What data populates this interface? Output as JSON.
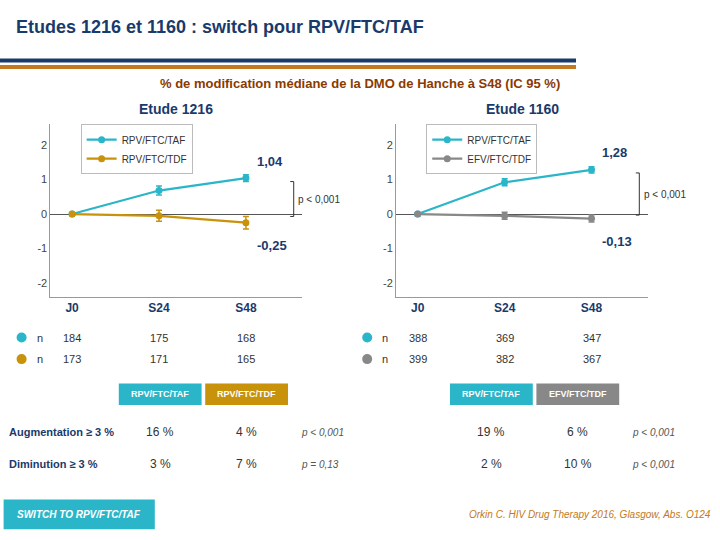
{
  "title": "Etudes 1216 et 1160 : switch pour RPV/FTC/TAF",
  "subtitle": "% de modification médiane de la DMO de Hanche à S48 (IC 95 %)",
  "chart_data": [
    {
      "type": "line",
      "title": "Etude 1216",
      "categories": [
        "J0",
        "S24",
        "S48"
      ],
      "series": [
        {
          "name": "RPV/FTC/TAF",
          "color": "#2bb5c8",
          "values": [
            0.0,
            0.68,
            1.04
          ],
          "errors": [
            0.04,
            0.13,
            0.1
          ],
          "value_labels": [
            null,
            null,
            "1,04"
          ],
          "counts": [
            184,
            175,
            168
          ]
        },
        {
          "name": "RPV/FTC/TDF",
          "color": "#c8920a",
          "values": [
            0.0,
            -0.05,
            -0.25
          ],
          "errors": [
            0.04,
            0.16,
            0.18
          ],
          "value_labels": [
            null,
            null,
            "-0,25"
          ],
          "counts": [
            173,
            171,
            165
          ]
        }
      ],
      "counts_label": "n",
      "annotations": [
        {
          "text": "p < 0,001"
        }
      ],
      "ylim": [
        -2.4,
        2.6
      ],
      "yticks": [
        -2,
        -1,
        0,
        1,
        2
      ],
      "grid": false,
      "legend": "upper left",
      "table": {
        "columns": [
          {
            "name": "RPV/FTC/TAF",
            "color": "#2bb5c8"
          },
          {
            "name": "RPV/FTC/TDF",
            "color": "#c8920a"
          }
        ],
        "rows": [
          {
            "label": "Augmentation ≥ 3 %",
            "values": [
              16,
              4
            ],
            "value_labels": [
              "16 %",
              "4 %"
            ],
            "p": "p < 0,001"
          },
          {
            "label": "Diminution ≥ 3 %",
            "values": [
              3,
              7
            ],
            "value_labels": [
              "3 %",
              "7 %"
            ],
            "p": "p = 0,13"
          }
        ]
      }
    },
    {
      "type": "line",
      "title": "Etude 1160",
      "categories": [
        "J0",
        "S24",
        "S48"
      ],
      "series": [
        {
          "name": "RPV/FTC/TAF",
          "color": "#2bb5c8",
          "values": [
            0.0,
            0.92,
            1.28
          ],
          "errors": [
            0.04,
            0.1,
            0.09
          ],
          "value_labels": [
            null,
            null,
            "1,28"
          ],
          "counts": [
            388,
            369,
            347
          ]
        },
        {
          "name": "EFV/FTC/TDF",
          "color": "#888888",
          "values": [
            0.0,
            -0.05,
            -0.13
          ],
          "errors": [
            0.04,
            0.1,
            0.1
          ],
          "value_labels": [
            null,
            null,
            "-0,13"
          ],
          "counts": [
            399,
            382,
            367
          ]
        }
      ],
      "counts_label": "n",
      "annotations": [
        {
          "text": "p < 0,001"
        }
      ],
      "ylim": [
        -2.4,
        2.6
      ],
      "yticks": [
        -2,
        -1,
        0,
        1,
        2
      ],
      "grid": false,
      "legend": "upper left",
      "table": {
        "columns": [
          {
            "name": "RPV/FTC/TAF",
            "color": "#2bb5c8"
          },
          {
            "name": "EFV/FTC/TDF",
            "color": "#888888"
          }
        ],
        "rows": [
          {
            "values": [
              19,
              6
            ],
            "value_labels": [
              "19 %",
              "6 %"
            ],
            "p": "p < 0,001"
          },
          {
            "values": [
              2,
              10
            ],
            "value_labels": [
              "2 %",
              "10 %"
            ],
            "p": "p < 0,001"
          }
        ]
      }
    }
  ],
  "footer": [
    {
      "text": "SWITCH TO RPV/FTC/TAF",
      "color": "#2bb5c8"
    },
    {
      "text": "Orkin C. HIV Drug Therapy 2016, Glasgow, Abs. O124",
      "color": "#c47820"
    }
  ]
}
